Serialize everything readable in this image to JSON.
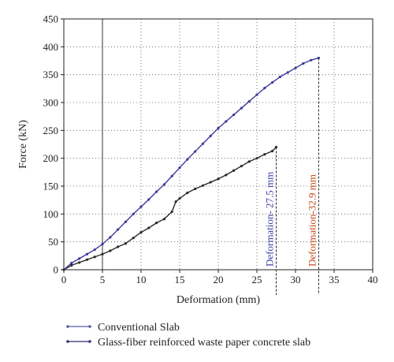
{
  "chart_data": {
    "type": "line",
    "xlabel": "Deformation (mm)",
    "ylabel": "Force (kN)",
    "xlim": [
      0,
      40
    ],
    "ylim": [
      0,
      450
    ],
    "xticks": [
      0,
      5,
      10,
      15,
      20,
      25,
      30,
      35,
      40
    ],
    "yticks": [
      0,
      50,
      100,
      150,
      200,
      250,
      300,
      350,
      400,
      450
    ],
    "grid": "dotted",
    "legend_position": "bottom",
    "series": [
      {
        "name": "Conventional Slab",
        "color": "#2b2b2b",
        "x": [
          0,
          1,
          2,
          3,
          4,
          5,
          6,
          7,
          8,
          9,
          10,
          11,
          12,
          13,
          14,
          14.5,
          15,
          16,
          17,
          18,
          19,
          20,
          21,
          22,
          23,
          24,
          25,
          26,
          27,
          27.5
        ],
        "y": [
          0,
          8,
          13,
          18,
          23,
          28,
          34,
          41,
          47,
          57,
          67,
          75,
          84,
          91,
          104,
          122,
          128,
          138,
          145,
          151,
          157,
          163,
          170,
          178,
          186,
          194,
          200,
          207,
          213,
          220
        ]
      },
      {
        "name": "Glass-fiber reinforced waste paper concrete slab",
        "color": "#3a3a9a",
        "x": [
          0,
          1,
          2,
          3,
          4,
          5,
          6,
          7,
          8,
          9,
          10,
          11,
          12,
          13,
          14,
          15,
          16,
          17,
          18,
          19,
          20,
          21,
          22,
          23,
          24,
          25,
          26,
          27,
          28,
          29,
          30,
          31,
          32,
          33
        ],
        "y": [
          0,
          12,
          20,
          28,
          36,
          46,
          58,
          72,
          86,
          100,
          113,
          126,
          140,
          153,
          168,
          183,
          198,
          212,
          226,
          240,
          254,
          266,
          278,
          290,
          302,
          314,
          326,
          336,
          346,
          354,
          362,
          370,
          376,
          380
        ]
      }
    ],
    "annotations": [
      {
        "text": "Deformation- 27.5 mm",
        "x": 27.5,
        "color": "#3d3da8"
      },
      {
        "text": "Deformation-32.9 mm",
        "x": 33,
        "color": "#c44a1a"
      }
    ]
  },
  "legend": {
    "items": [
      {
        "label": "Conventional Slab",
        "color": "#5a5aa8"
      },
      {
        "label": "Glass-fiber reinforced waste paper concrete slab",
        "color": "#2f2f7a"
      }
    ]
  }
}
